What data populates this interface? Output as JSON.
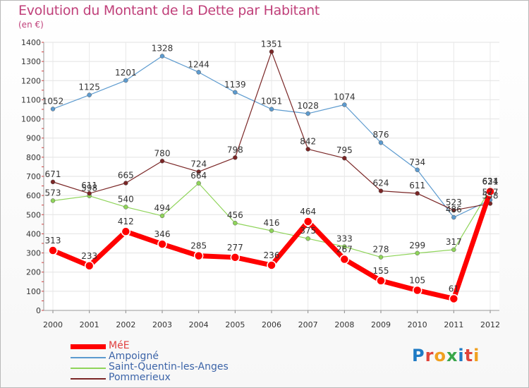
{
  "title": "Evolution du Montant de la Dette par Habitant",
  "unit": "(en €)",
  "logo": {
    "text": "Proxiti",
    "colors": [
      "#1f7bc4",
      "#e0443a",
      "#f0a020",
      "#3aa64a",
      "#1f7bc4",
      "#e0443a",
      "#f0a020"
    ]
  },
  "chart_data": {
    "type": "line",
    "categories": [
      "2000",
      "2001",
      "2002",
      "2003",
      "2004",
      "2005",
      "2006",
      "2007",
      "2008",
      "2009",
      "2010",
      "2011",
      "2012"
    ],
    "ylim": [
      0,
      1400
    ],
    "yticks": [
      0,
      100,
      200,
      300,
      400,
      500,
      600,
      700,
      800,
      900,
      1000,
      1100,
      1200,
      1300,
      1400
    ],
    "grid": true,
    "legend_position": "bottom-left",
    "series": [
      {
        "name": "MéE",
        "color": "#ff0000",
        "values": [
          313,
          233,
          412,
          346,
          285,
          277,
          236,
          464,
          267,
          155,
          105,
          61,
          621
        ],
        "labels": [
          "313",
          "233",
          "412",
          "346",
          "285",
          "277",
          "236",
          "464",
          "267",
          "155",
          "105",
          "61",
          "621"
        ],
        "bold": true
      },
      {
        "name": "Ampoigné",
        "color": "#5d9bcf",
        "values": [
          1052,
          1125,
          1201,
          1328,
          1244,
          1139,
          1051,
          1028,
          1074,
          876,
          734,
          486,
          577
        ],
        "labels": [
          "1052",
          "1125",
          "1201",
          "1328",
          "1244",
          "1139",
          "1051",
          "1028",
          "1074",
          "876",
          "734",
          "486",
          "577"
        ]
      },
      {
        "name": "Saint-Quentin-les-Anges",
        "color": "#8fd45a",
        "values": [
          573,
          598,
          540,
          494,
          664,
          456,
          416,
          375,
          333,
          278,
          299,
          317,
          634
        ],
        "labels": [
          "573",
          "598",
          "540",
          "494",
          "664",
          "456",
          "416",
          "375",
          "333",
          "278",
          "299",
          "317",
          "634"
        ]
      },
      {
        "name": "Pommerieux",
        "color": "#7a2626",
        "values": [
          671,
          611,
          665,
          780,
          724,
          798,
          1351,
          842,
          795,
          624,
          611,
          523,
          558
        ],
        "labels": [
          "671",
          "611",
          "665",
          "780",
          "724",
          "798",
          "1351",
          "842",
          "795",
          "624",
          "611",
          "523",
          "558"
        ]
      }
    ]
  }
}
